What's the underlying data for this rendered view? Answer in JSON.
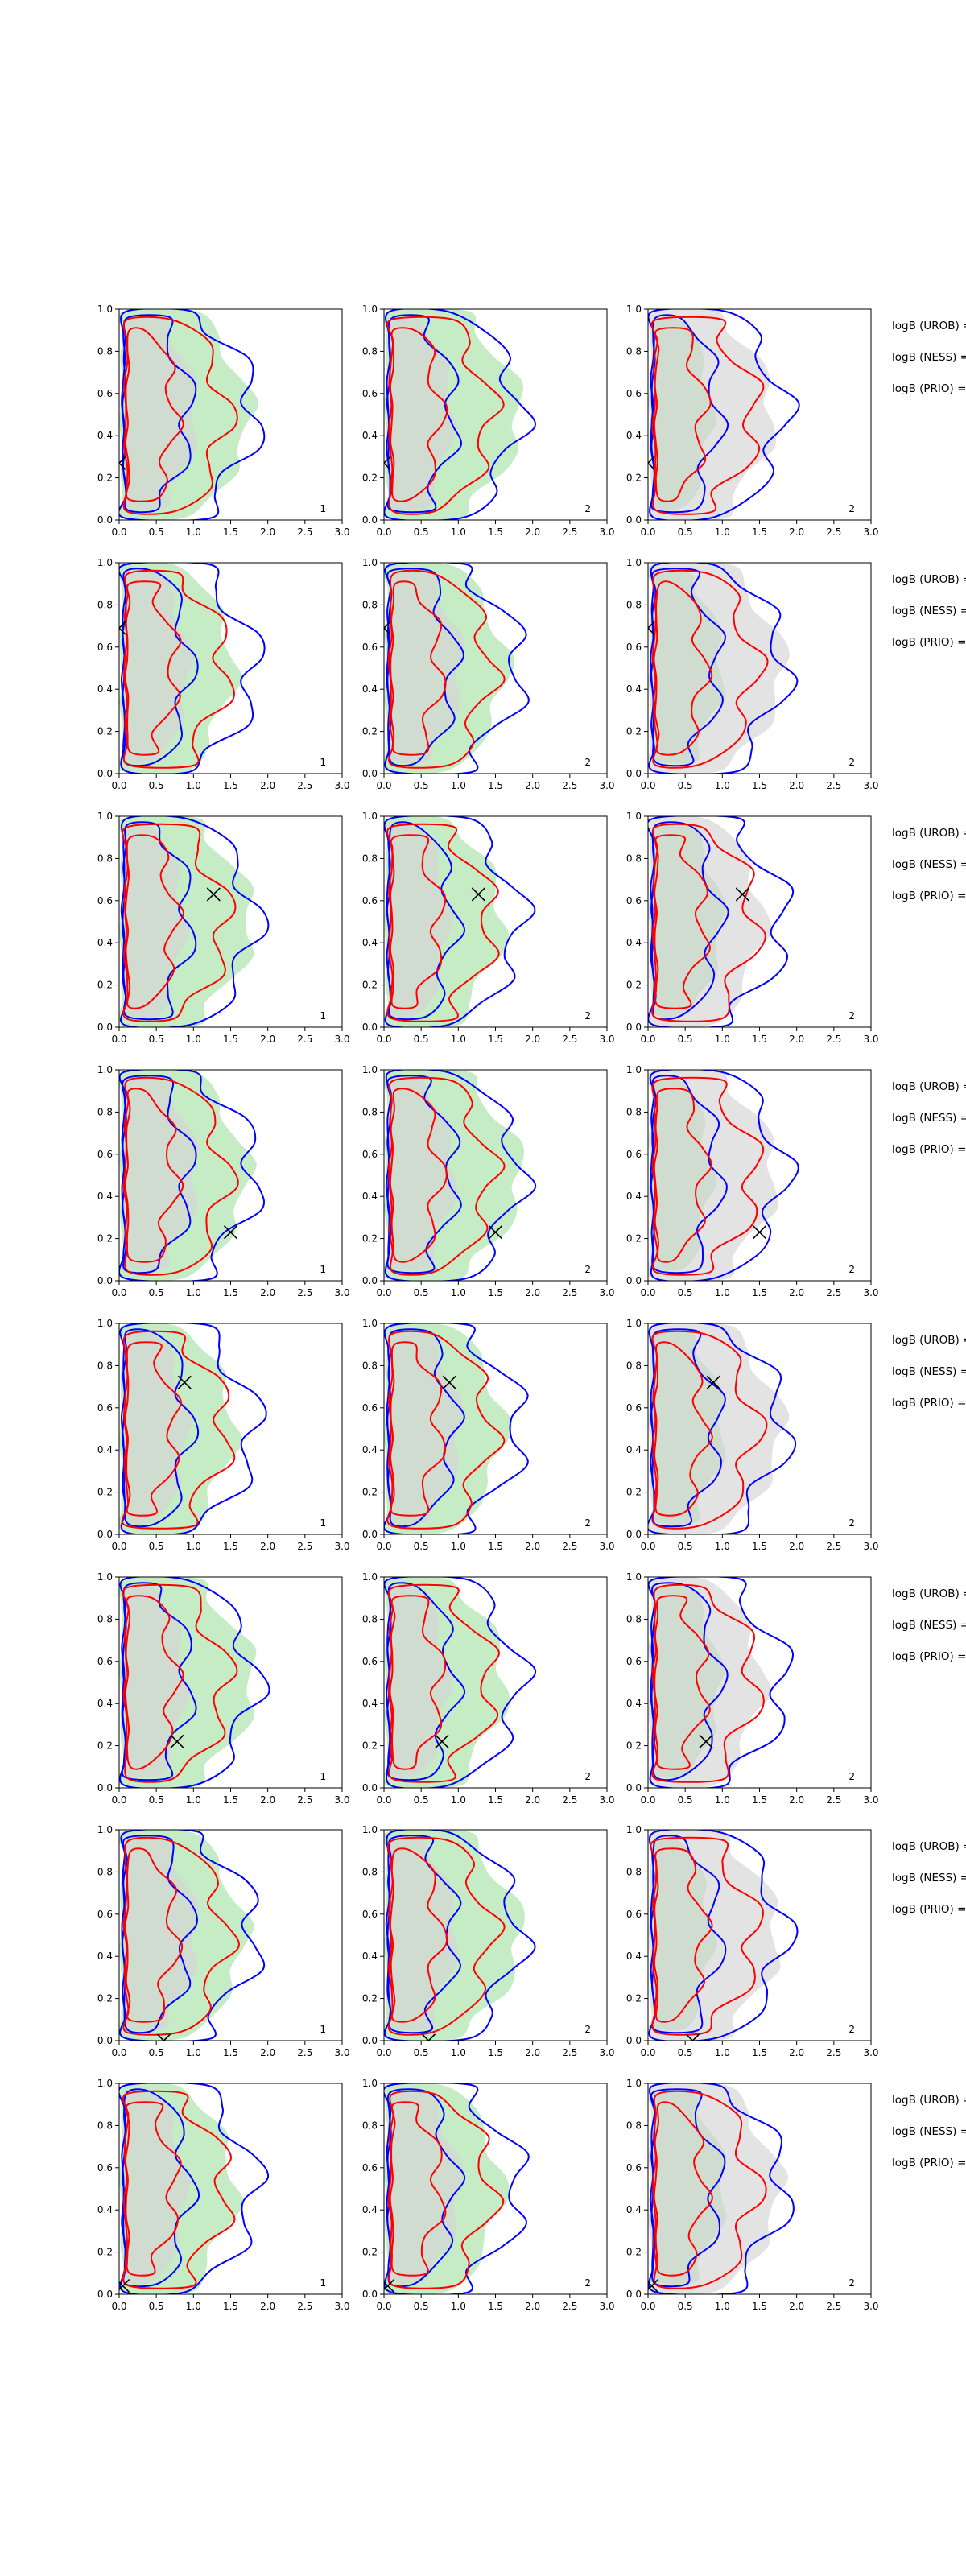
{
  "chart_data": {
    "type": "contour",
    "layout": {
      "rows": 8,
      "columns": 3
    },
    "axes": {
      "xlim": [
        0.0,
        3.0
      ],
      "ylim": [
        0.0,
        1.0
      ],
      "xticks": [
        "0.0",
        "0.5",
        "1.0",
        "1.5",
        "2.0",
        "2.5",
        "3.0"
      ],
      "yticks": [
        "0.0",
        "0.2",
        "0.4",
        "0.6",
        "0.8",
        "1.0"
      ]
    },
    "colors": {
      "blue_contour": "#0000ff",
      "red_contour": "#ff0000",
      "green_fill": "#c5ecc5",
      "gray_fill": "#e3e3e3",
      "overlap_fill": "#cfdccf",
      "marker": "#000000"
    },
    "row_annotations": [
      "logB (UROB) =",
      "logB (NESS) =",
      "logB (PRIO) ="
    ],
    "panels": [
      {
        "row": 1,
        "col": 1,
        "fill": "green",
        "label": "1",
        "marker": [
          0.0,
          0.27
        ]
      },
      {
        "row": 1,
        "col": 2,
        "fill": "green",
        "label": "2",
        "marker": [
          0.0,
          0.27
        ]
      },
      {
        "row": 1,
        "col": 3,
        "fill": "gray",
        "label": "2",
        "marker": [
          0.0,
          0.27
        ]
      },
      {
        "row": 2,
        "col": 1,
        "fill": "green",
        "label": "1",
        "marker": [
          0.0,
          0.69
        ]
      },
      {
        "row": 2,
        "col": 2,
        "fill": "green",
        "label": "2",
        "marker": [
          0.0,
          0.69
        ]
      },
      {
        "row": 2,
        "col": 3,
        "fill": "gray",
        "label": "2",
        "marker": [
          0.0,
          0.69
        ]
      },
      {
        "row": 3,
        "col": 1,
        "fill": "green",
        "label": "1",
        "marker": [
          1.27,
          0.63
        ]
      },
      {
        "row": 3,
        "col": 2,
        "fill": "green",
        "label": "2",
        "marker": [
          1.27,
          0.63
        ]
      },
      {
        "row": 3,
        "col": 3,
        "fill": "gray",
        "label": "2",
        "marker": [
          1.27,
          0.63
        ]
      },
      {
        "row": 4,
        "col": 1,
        "fill": "green",
        "label": "1",
        "marker": [
          1.5,
          0.23
        ]
      },
      {
        "row": 4,
        "col": 2,
        "fill": "green",
        "label": "2",
        "marker": [
          1.5,
          0.23
        ]
      },
      {
        "row": 4,
        "col": 3,
        "fill": "gray",
        "label": "2",
        "marker": [
          1.5,
          0.23
        ]
      },
      {
        "row": 5,
        "col": 1,
        "fill": "green",
        "label": "1",
        "marker": [
          0.88,
          0.72
        ]
      },
      {
        "row": 5,
        "col": 2,
        "fill": "green",
        "label": "2",
        "marker": [
          0.88,
          0.72
        ]
      },
      {
        "row": 5,
        "col": 3,
        "fill": "gray",
        "label": "2",
        "marker": [
          0.88,
          0.72
        ]
      },
      {
        "row": 6,
        "col": 1,
        "fill": "green",
        "label": "1",
        "marker": [
          0.78,
          0.22
        ]
      },
      {
        "row": 6,
        "col": 2,
        "fill": "green",
        "label": "2",
        "marker": [
          0.78,
          0.22
        ]
      },
      {
        "row": 6,
        "col": 3,
        "fill": "gray",
        "label": "2",
        "marker": [
          0.78,
          0.22
        ]
      },
      {
        "row": 7,
        "col": 1,
        "fill": "green",
        "label": "1",
        "marker": [
          0.6,
          0.0
        ]
      },
      {
        "row": 7,
        "col": 2,
        "fill": "green",
        "label": "2",
        "marker": [
          0.6,
          0.0
        ]
      },
      {
        "row": 7,
        "col": 3,
        "fill": "gray",
        "label": "2",
        "marker": [
          0.6,
          0.0
        ]
      },
      {
        "row": 8,
        "col": 1,
        "fill": "green",
        "label": "1",
        "marker": [
          0.05,
          0.04
        ]
      },
      {
        "row": 8,
        "col": 2,
        "fill": "green",
        "label": "2",
        "marker": [
          0.05,
          0.04
        ]
      },
      {
        "row": 8,
        "col": 3,
        "fill": "gray",
        "label": "2",
        "marker": [
          0.05,
          0.04
        ]
      }
    ]
  }
}
